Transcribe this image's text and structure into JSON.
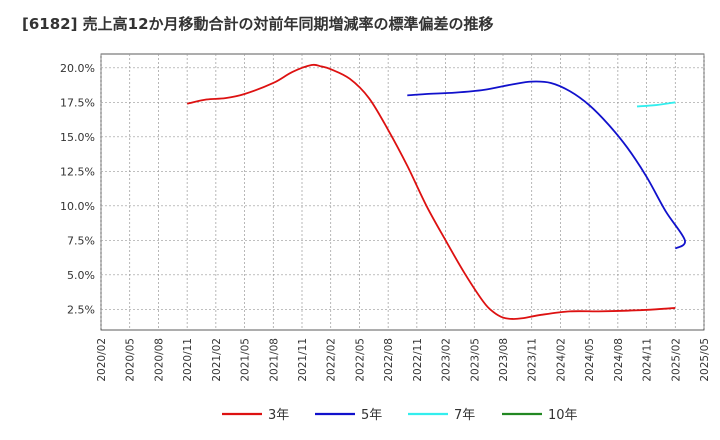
{
  "chart_data": {
    "type": "line",
    "title": "[6182]  売上高12か月移動合計の対前年同期増減率の標準偏差の推移",
    "xlabel": "",
    "ylabel": "",
    "ylim": [
      1.0,
      21.0
    ],
    "y_ticks": [
      2.5,
      5.0,
      7.5,
      10.0,
      12.5,
      15.0,
      17.5,
      20.0
    ],
    "y_tick_labels": [
      "2.5%",
      "5.0%",
      "7.5%",
      "10.0%",
      "12.5%",
      "15.0%",
      "17.5%",
      "20.0%"
    ],
    "x_tick_labels": [
      "2020/02",
      "2020/05",
      "2020/08",
      "2020/11",
      "2021/02",
      "2021/05",
      "2021/08",
      "2021/11",
      "2022/02",
      "2022/05",
      "2022/08",
      "2022/11",
      "2023/02",
      "2023/05",
      "2023/08",
      "2023/11",
      "2024/02",
      "2024/05",
      "2024/08",
      "2024/11",
      "2025/02",
      "2025/05"
    ],
    "grid": true,
    "legend_position": "bottom",
    "series": [
      {
        "name": "3年",
        "color": "#dd1111",
        "points": [
          [
            "2020/11",
            17.4
          ],
          [
            "2021/01",
            17.7
          ],
          [
            "2021/03",
            17.8
          ],
          [
            "2021/05",
            18.1
          ],
          [
            "2021/08",
            18.9
          ],
          [
            "2021/10",
            19.7
          ],
          [
            "2021/12",
            20.2
          ],
          [
            "2022/01",
            20.1
          ],
          [
            "2022/02",
            19.9
          ],
          [
            "2022/04",
            19.2
          ],
          [
            "2022/06",
            17.8
          ],
          [
            "2022/08",
            15.5
          ],
          [
            "2022/10",
            12.9
          ],
          [
            "2022/12",
            10.0
          ],
          [
            "2023/02",
            7.5
          ],
          [
            "2023/04",
            5.1
          ],
          [
            "2023/06",
            3.0
          ],
          [
            "2023/07",
            2.3
          ],
          [
            "2023/08",
            1.9
          ],
          [
            "2023/09",
            1.8
          ],
          [
            "2023/10",
            1.85
          ],
          [
            "2023/12",
            2.1
          ],
          [
            "2024/03",
            2.35
          ],
          [
            "2024/06",
            2.35
          ],
          [
            "2024/09",
            2.4
          ],
          [
            "2024/12",
            2.5
          ],
          [
            "2025/02",
            2.6
          ]
        ]
      },
      {
        "name": "5年",
        "color": "#1111cc",
        "points": [
          [
            "2022/10",
            18.0
          ],
          [
            "2022/12",
            18.1
          ],
          [
            "2023/03",
            18.2
          ],
          [
            "2023/06",
            18.4
          ],
          [
            "2023/09",
            18.8
          ],
          [
            "2023/11",
            19.0
          ],
          [
            "2024/01",
            18.9
          ],
          [
            "2024/03",
            18.3
          ],
          [
            "2024/05",
            17.3
          ],
          [
            "2024/07",
            15.9
          ],
          [
            "2024/09",
            14.2
          ],
          [
            "2024/11",
            12.1
          ],
          [
            "2025/01",
            9.6
          ],
          [
            "2025/03",
            7.5
          ],
          [
            "2025/02",
            6.9
          ]
        ]
      },
      {
        "name": "7年",
        "color": "#33eeee",
        "points": [
          [
            "2024/10",
            17.2
          ],
          [
            "2024/12",
            17.3
          ],
          [
            "2025/02",
            17.5
          ]
        ]
      },
      {
        "name": "10年",
        "color": "#228822",
        "points": []
      }
    ]
  }
}
